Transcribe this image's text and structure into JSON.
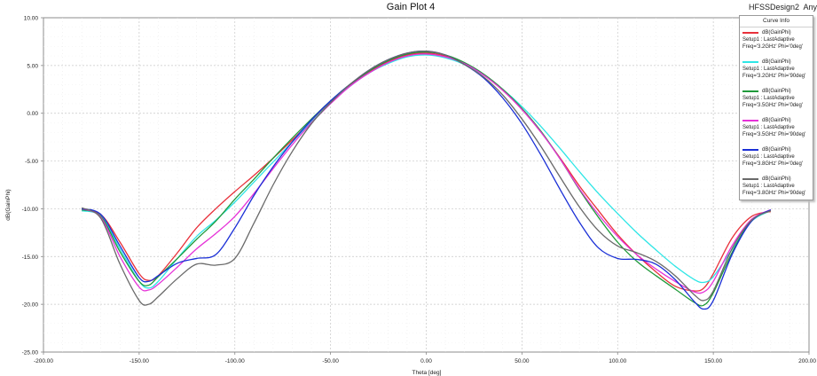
{
  "header": {
    "design_name": "HFSSDesign2",
    "app_name": "Any"
  },
  "chart_data": {
    "type": "line",
    "title": "Gain Plot 4",
    "xlabel": "Theta [deg]",
    "ylabel": "dB(GainPhi)",
    "xlim": [
      -200,
      200
    ],
    "ylim": [
      -25,
      10
    ],
    "xticks": [
      "-200.00",
      "-150.00",
      "-100.00",
      "-50.00",
      "0.00",
      "50.00",
      "100.00",
      "150.00",
      "200.00"
    ],
    "yticks": [
      "10.00",
      "5.00",
      "0.00",
      "-5.00",
      "-10.00",
      "-15.00",
      "-20.00",
      "-25.00"
    ],
    "grid": true,
    "legend_title": "Curve Info",
    "legend_position": "top-right",
    "series": [
      {
        "name": "dB(GainPhi)",
        "setup": "Setup1 : LastAdaptive",
        "freq": "Freq='3.2GHz' Phi='0deg'",
        "color": "#e8303a",
        "x": [
          -180,
          -170,
          -160,
          -150,
          -145,
          -140,
          -130,
          -120,
          -110,
          -100,
          -90,
          -80,
          -70,
          -60,
          -50,
          -40,
          -30,
          -20,
          -10,
          0,
          10,
          20,
          30,
          40,
          50,
          60,
          70,
          80,
          90,
          100,
          110,
          120,
          130,
          140,
          145,
          150,
          160,
          170,
          180
        ],
        "y": [
          -10.2,
          -10.6,
          -13.5,
          -16.8,
          -17.5,
          -17.0,
          -14.6,
          -12.0,
          -10.0,
          -8.2,
          -6.5,
          -4.7,
          -2.8,
          -0.8,
          1.2,
          2.9,
          4.3,
          5.4,
          6.1,
          6.3,
          6.0,
          5.2,
          4.0,
          2.4,
          0.4,
          -2.0,
          -4.7,
          -7.6,
          -10.2,
          -12.7,
          -14.8,
          -16.6,
          -18.1,
          -18.6,
          -18.3,
          -16.8,
          -13.0,
          -10.8,
          -10.3
        ]
      },
      {
        "name": "dB(GainPhi)",
        "setup": "Setup1 : LastAdaptive",
        "freq": "Freq='3.2GHz' Phi='90deg'",
        "color": "#2ee6e6",
        "x": [
          -180,
          -170,
          -160,
          -150,
          -145,
          -140,
          -130,
          -120,
          -110,
          -100,
          -90,
          -80,
          -70,
          -60,
          -50,
          -40,
          -30,
          -20,
          -10,
          0,
          10,
          20,
          30,
          40,
          50,
          60,
          70,
          80,
          90,
          100,
          110,
          120,
          130,
          140,
          145,
          150,
          160,
          170,
          180
        ],
        "y": [
          -10.2,
          -10.8,
          -14.2,
          -17.6,
          -18.3,
          -17.6,
          -15.2,
          -12.9,
          -11.2,
          -9.3,
          -7.2,
          -5.1,
          -3.0,
          -0.9,
          1.1,
          2.8,
          4.2,
          5.2,
          5.9,
          6.1,
          5.8,
          5.1,
          4.0,
          2.5,
          0.7,
          -1.4,
          -3.7,
          -6.1,
          -8.4,
          -10.5,
          -12.5,
          -14.3,
          -16.0,
          -17.4,
          -17.7,
          -17.1,
          -14.2,
          -11.3,
          -10.2
        ]
      },
      {
        "name": "dB(GainPhi)",
        "setup": "Setup1 : LastAdaptive",
        "freq": "Freq='3.5GHz' Phi='0deg'",
        "color": "#1f9a3a",
        "x": [
          -180,
          -170,
          -160,
          -150,
          -145,
          -140,
          -130,
          -120,
          -110,
          -100,
          -90,
          -80,
          -70,
          -60,
          -50,
          -40,
          -30,
          -20,
          -10,
          0,
          10,
          20,
          30,
          40,
          50,
          60,
          70,
          80,
          90,
          100,
          110,
          120,
          130,
          140,
          145,
          150,
          160,
          170,
          180
        ],
        "y": [
          -10.1,
          -10.8,
          -14.5,
          -17.6,
          -18.0,
          -17.1,
          -15.2,
          -13.2,
          -11.3,
          -9.0,
          -6.9,
          -4.7,
          -2.6,
          -0.6,
          1.3,
          3.0,
          4.4,
          5.5,
          6.2,
          6.4,
          6.1,
          5.3,
          4.1,
          2.5,
          0.5,
          -1.9,
          -4.8,
          -8.0,
          -10.9,
          -13.5,
          -15.5,
          -17.0,
          -18.4,
          -19.8,
          -20.1,
          -18.8,
          -14.5,
          -11.2,
          -10.2
        ]
      },
      {
        "name": "dB(GainPhi)",
        "setup": "Setup1 : LastAdaptive",
        "freq": "Freq='3.5GHz' Phi='90deg'",
        "color": "#e632d8",
        "x": [
          -180,
          -170,
          -160,
          -150,
          -145,
          -140,
          -130,
          -120,
          -110,
          -100,
          -90,
          -80,
          -70,
          -60,
          -50,
          -40,
          -30,
          -20,
          -10,
          0,
          10,
          20,
          30,
          40,
          50,
          60,
          70,
          80,
          90,
          100,
          110,
          120,
          130,
          140,
          145,
          150,
          160,
          170,
          180
        ],
        "y": [
          -10.0,
          -10.9,
          -15.0,
          -18.2,
          -18.5,
          -17.9,
          -16.1,
          -14.2,
          -12.6,
          -10.8,
          -8.4,
          -5.8,
          -3.3,
          -1.0,
          1.0,
          2.8,
          4.2,
          5.3,
          6.0,
          6.2,
          5.9,
          5.2,
          4.0,
          2.4,
          0.4,
          -2.0,
          -4.8,
          -7.9,
          -10.6,
          -12.9,
          -14.8,
          -16.3,
          -17.6,
          -18.7,
          -18.7,
          -17.6,
          -13.8,
          -11.1,
          -10.1
        ]
      },
      {
        "name": "dB(GainPhi)",
        "setup": "Setup1 : LastAdaptive",
        "freq": "Freq='3.8GHz' Phi='0deg'",
        "color": "#1a2fd6",
        "x": [
          -180,
          -170,
          -160,
          -150,
          -145,
          -140,
          -130,
          -120,
          -110,
          -100,
          -90,
          -80,
          -70,
          -60,
          -50,
          -40,
          -30,
          -20,
          -10,
          0,
          10,
          20,
          30,
          40,
          50,
          60,
          70,
          80,
          90,
          100,
          110,
          120,
          130,
          140,
          145,
          150,
          160,
          170,
          180
        ],
        "y": [
          -10.0,
          -10.6,
          -13.9,
          -17.2,
          -17.6,
          -17.0,
          -15.7,
          -15.2,
          -14.8,
          -12.0,
          -8.6,
          -5.6,
          -3.0,
          -0.7,
          1.3,
          3.0,
          4.5,
          5.6,
          6.3,
          6.5,
          6.1,
          5.1,
          3.7,
          1.6,
          -1.1,
          -4.4,
          -8.0,
          -11.4,
          -14.1,
          -15.2,
          -15.3,
          -15.8,
          -17.4,
          -19.7,
          -20.5,
          -19.6,
          -14.7,
          -11.3,
          -10.1
        ]
      },
      {
        "name": "dB(GainPhi)",
        "setup": "Setup1 : LastAdaptive",
        "freq": "Freq='3.8GHz' Phi='90deg'",
        "color": "#6a6a6a",
        "x": [
          -180,
          -170,
          -160,
          -150,
          -145,
          -140,
          -130,
          -120,
          -110,
          -100,
          -90,
          -80,
          -70,
          -60,
          -50,
          -40,
          -30,
          -20,
          -10,
          0,
          10,
          20,
          30,
          40,
          50,
          60,
          70,
          80,
          90,
          100,
          110,
          120,
          130,
          140,
          145,
          150,
          160,
          170,
          180
        ],
        "y": [
          -9.9,
          -11.0,
          -15.8,
          -19.6,
          -20.0,
          -19.2,
          -17.3,
          -15.8,
          -15.9,
          -15.2,
          -11.5,
          -7.5,
          -4.0,
          -1.1,
          1.1,
          3.0,
          4.5,
          5.6,
          6.3,
          6.5,
          6.1,
          5.1,
          3.8,
          1.9,
          -0.6,
          -3.5,
          -6.7,
          -9.8,
          -12.3,
          -13.9,
          -14.6,
          -15.5,
          -17.0,
          -19.0,
          -19.6,
          -18.6,
          -14.1,
          -11.2,
          -10.2
        ]
      }
    ]
  }
}
